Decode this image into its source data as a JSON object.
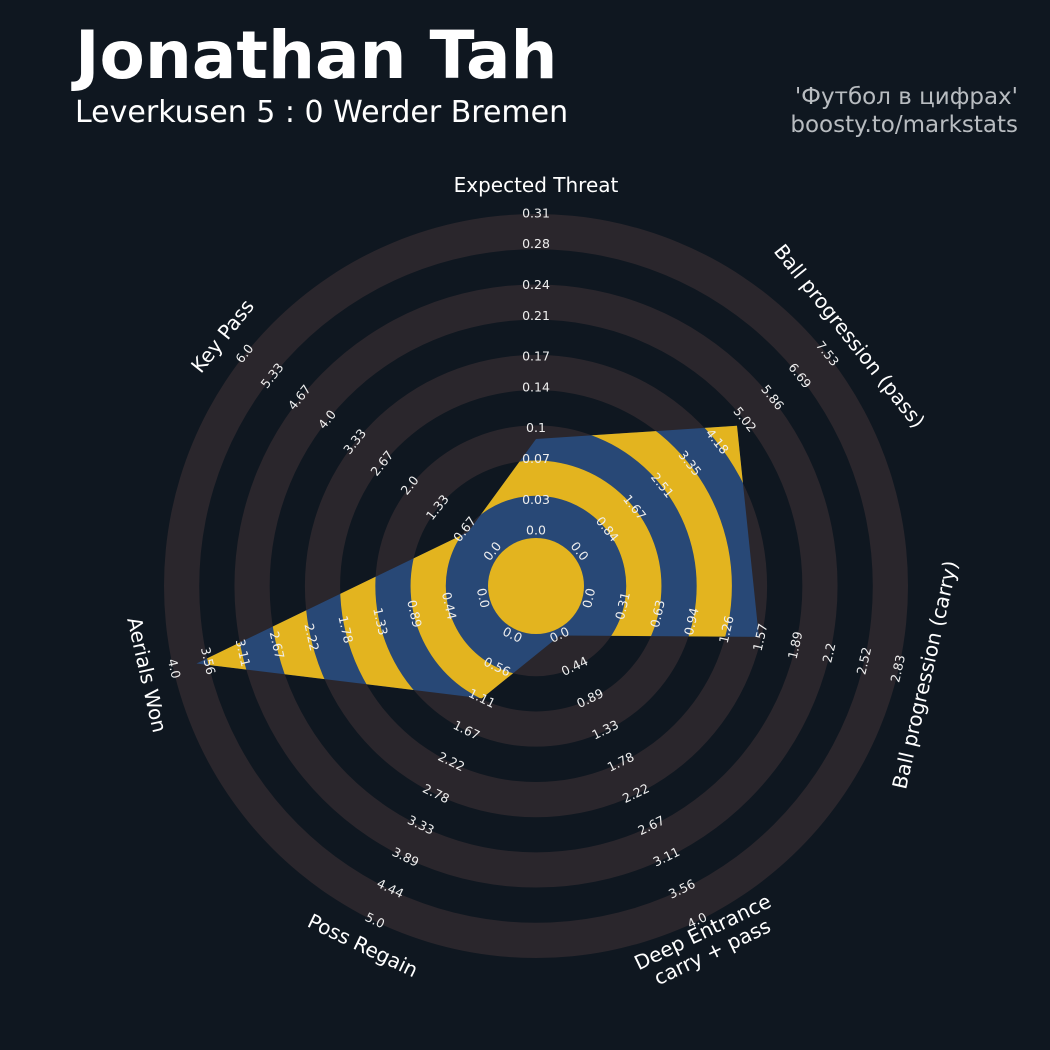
{
  "title": "Jonathan Tah",
  "subtitle": "Leverkusen 5 : 0 Werder Bremen",
  "credits": [
    "'Футбол в цифрах'",
    "boosty.to/markstats"
  ],
  "chart_data": {
    "type": "radar",
    "categories": [
      "Expected Threat",
      "Ball progression (pass)",
      "Ball progression (carry)",
      "Deep Entrance\ncarry + pass",
      "Poss Regain",
      "Aerials Won",
      "Key Pass"
    ],
    "values": [
      0.09,
      4.8,
      1.55,
      0,
      1.1,
      3.7,
      0.6
    ],
    "axis_lims": [
      [
        0,
        0.31
      ],
      [
        0,
        7.53
      ],
      [
        0,
        2.83
      ],
      [
        0,
        4
      ],
      [
        0,
        5
      ],
      [
        0,
        4
      ],
      [
        0,
        6
      ]
    ],
    "axis_ticks": [
      [
        {
          "value": 0,
          "label": "0.0"
        },
        0.03,
        0.07,
        0.1,
        0.14,
        0.17,
        0.21,
        0.24,
        0.28,
        0.31
      ],
      [
        {
          "value": 0,
          "label": "0.0"
        },
        0.84,
        1.67,
        2.51,
        3.35,
        4.18,
        5.02,
        5.86,
        6.69,
        7.53
      ],
      [
        {
          "value": 0,
          "label": "0.0"
        },
        0.31,
        0.63,
        0.94,
        1.26,
        1.57,
        1.89,
        2.2,
        2.52,
        2.83
      ],
      [
        {
          "value": 0,
          "label": "0.0"
        },
        0.44,
        0.89,
        1.33,
        1.78,
        2.22,
        2.67,
        3.11,
        3.56,
        {
          "value": 4,
          "label": "4.0"
        }
      ],
      [
        {
          "value": 0,
          "label": "0.0"
        },
        0.56,
        1.11,
        1.67,
        2.22,
        2.78,
        3.33,
        3.89,
        4.44,
        {
          "value": 5,
          "label": "5.0"
        }
      ],
      [
        {
          "value": 0,
          "label": "0.0"
        },
        0.44,
        0.89,
        1.33,
        1.78,
        2.22,
        2.67,
        3.11,
        3.56,
        {
          "value": 4,
          "label": "4.0"
        }
      ],
      [
        {
          "value": 0,
          "label": "0.0"
        },
        0.67,
        1.33,
        {
          "value": 2,
          "label": "2.0"
        },
        2.67,
        3.33,
        {
          "value": 4,
          "label": "4.0"
        },
        4.67,
        5.33,
        {
          "value": 6,
          "label": "6.0"
        }
      ]
    ],
    "band_color": "#2a262c",
    "fill_color": "#284876",
    "stripe_color": "#e3b41f"
  }
}
